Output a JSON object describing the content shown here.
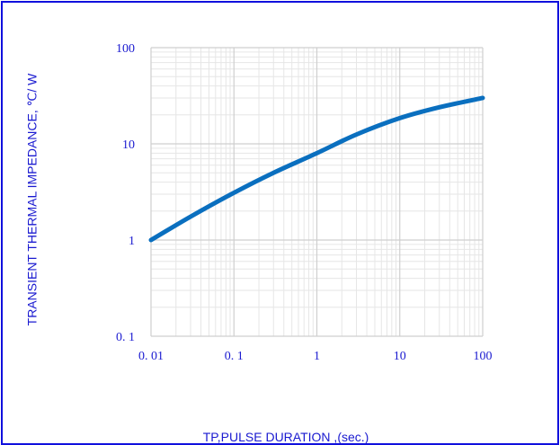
{
  "colors": {
    "frame": "#1010dd",
    "label_text": "#1a1ad0",
    "series": "#0a6fbf",
    "major_grid": "#cfcfcf",
    "minor_grid": "#e6e6e6"
  },
  "chart_data": {
    "type": "line",
    "title": "",
    "xlabel": "TP,PULSE DURATION ,(sec.)",
    "ylabel": "TRANSIENT THERMAL IMPEDANCE, ℃/ W",
    "xscale": "log",
    "yscale": "log",
    "xlim": [
      0.01,
      100
    ],
    "ylim": [
      0.1,
      100
    ],
    "grid": true,
    "legend": "none",
    "x_tick_labels": [
      "0. 01",
      "0. 1",
      "1",
      "10",
      "100"
    ],
    "y_tick_labels": [
      "0. 1",
      "1",
      "10",
      "100"
    ],
    "series": [
      {
        "x": [
          0.01,
          0.03,
          0.1,
          0.3,
          1,
          3,
          10,
          30,
          100
        ],
        "y": [
          1.0,
          1.75,
          3.1,
          5.0,
          8.0,
          12.5,
          18.5,
          24.0,
          30.0
        ]
      }
    ]
  }
}
